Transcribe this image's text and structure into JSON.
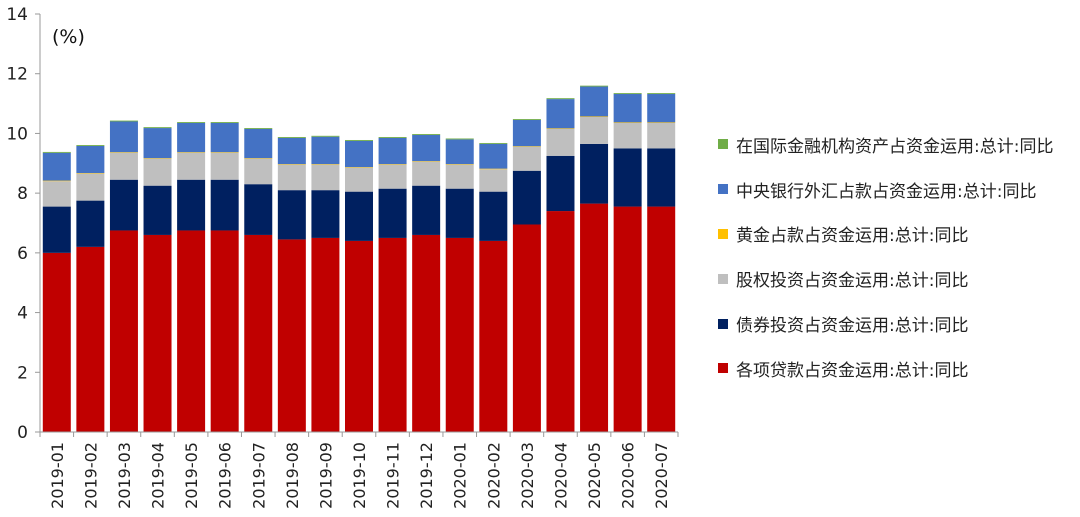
{
  "chart_data": {
    "type": "bar",
    "stacked": true,
    "unit_label": "(%)",
    "categories": [
      "2019-01",
      "2019-02",
      "2019-03",
      "2019-04",
      "2019-05",
      "2019-06",
      "2019-07",
      "2019-08",
      "2019-09",
      "2019-10",
      "2019-11",
      "2019-12",
      "2020-01",
      "2020-02",
      "2020-03",
      "2020-04",
      "2020-05",
      "2020-06",
      "2020-07"
    ],
    "ylim": [
      0,
      14
    ],
    "yticks": [
      0,
      2,
      4,
      6,
      8,
      10,
      12,
      14
    ],
    "grid": false,
    "legend_position": "right",
    "series": [
      {
        "name": "各项贷款占资金运用:总计:同比",
        "color": "#C00000",
        "values": [
          6.0,
          6.2,
          6.75,
          6.6,
          6.75,
          6.75,
          6.6,
          6.45,
          6.5,
          6.4,
          6.5,
          6.6,
          6.5,
          6.4,
          6.95,
          7.4,
          7.65,
          7.55,
          7.55
        ]
      },
      {
        "name": "债券投资占资金运用:总计:同比",
        "color": "#002060",
        "values": [
          1.55,
          1.55,
          1.7,
          1.65,
          1.7,
          1.7,
          1.7,
          1.65,
          1.6,
          1.65,
          1.65,
          1.65,
          1.65,
          1.65,
          1.8,
          1.85,
          2.0,
          1.95,
          1.95
        ]
      },
      {
        "name": "股权投资占资金运用:总计:同比",
        "color": "#BFBFBF",
        "values": [
          0.85,
          0.9,
          0.9,
          0.9,
          0.9,
          0.9,
          0.85,
          0.85,
          0.85,
          0.8,
          0.8,
          0.8,
          0.8,
          0.75,
          0.8,
          0.9,
          0.9,
          0.85,
          0.85
        ]
      },
      {
        "name": "黄金占款占资金运用:总计:同比",
        "color": "#FFC000",
        "values": [
          0.02,
          0.02,
          0.02,
          0.02,
          0.02,
          0.02,
          0.02,
          0.02,
          0.02,
          0.02,
          0.02,
          0.02,
          0.02,
          0.02,
          0.02,
          0.02,
          0.02,
          0.02,
          0.02
        ]
      },
      {
        "name": "中央银行外汇占款占资金运用:总计:同比",
        "color": "#4472C4",
        "values": [
          0.93,
          0.91,
          1.03,
          1.01,
          0.98,
          0.98,
          0.98,
          0.88,
          0.92,
          0.88,
          0.88,
          0.88,
          0.83,
          0.83,
          0.88,
          0.98,
          1.0,
          0.95,
          0.95
        ]
      },
      {
        "name": "在国际金融机构资产占资金运用:总计:同比",
        "color": "#70AD47",
        "values": [
          0.03,
          0.03,
          0.03,
          0.03,
          0.03,
          0.03,
          0.03,
          0.03,
          0.03,
          0.03,
          0.03,
          0.03,
          0.03,
          0.03,
          0.03,
          0.03,
          0.03,
          0.03,
          0.03
        ]
      }
    ],
    "legend_order": [
      5,
      4,
      3,
      2,
      1,
      0
    ]
  }
}
